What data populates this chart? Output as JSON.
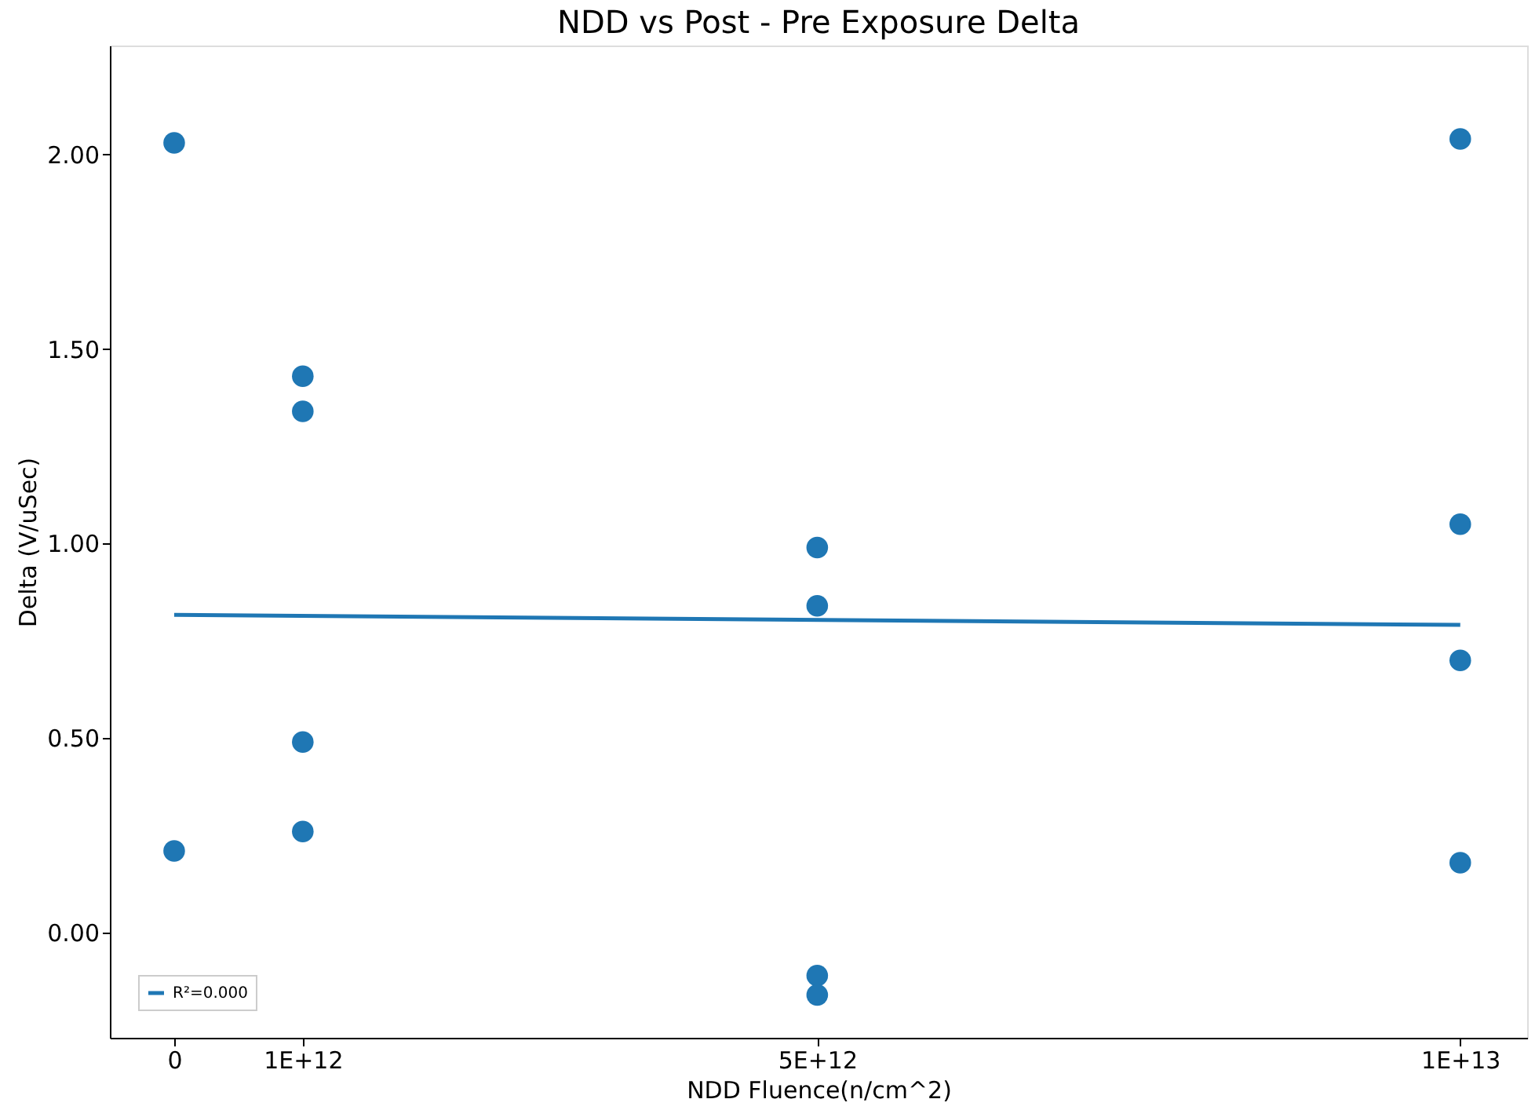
{
  "chart_data": {
    "type": "scatter",
    "title": "NDD vs Post - Pre Exposure Delta",
    "xlabel": "NDD Fluence(n/cm^2)",
    "ylabel": "Delta (V/uSec)",
    "series": [
      {
        "marker": "circle",
        "color": "#1f77b4",
        "x": [
          0,
          0,
          1000000000000.0,
          1000000000000.0,
          1000000000000.0,
          1000000000000.0,
          5000000000000.0,
          5000000000000.0,
          5000000000000.0,
          5000000000000.0,
          10000000000000.0,
          10000000000000.0,
          10000000000000.0,
          10000000000000.0
        ],
        "values": [
          2.03,
          0.21,
          1.43,
          1.34,
          0.49,
          0.26,
          0.99,
          0.84,
          -0.11,
          -0.16,
          2.04,
          1.05,
          0.7,
          0.18
        ]
      },
      {
        "type": "line",
        "name": "R²=0.000",
        "color": "#1f77b4",
        "x": [
          0,
          10000000000000.0
        ],
        "values": [
          0.817,
          0.791
        ]
      }
    ],
    "xlim": [
      -500000000000.0,
      10520000000000.0
    ],
    "ylim": [
      -0.27,
      2.28
    ],
    "xticks": [
      {
        "value": 0,
        "label": "0"
      },
      {
        "value": 1000000000000.0,
        "label": "1E+12"
      },
      {
        "value": 5000000000000.0,
        "label": "5E+12"
      },
      {
        "value": 10000000000000.0,
        "label": "1E+13"
      }
    ],
    "yticks": [
      {
        "value": 0,
        "label": "0.00"
      },
      {
        "value": 0.5,
        "label": "0.50"
      },
      {
        "value": 1,
        "label": "1.00"
      },
      {
        "value": 1.5,
        "label": "1.50"
      },
      {
        "value": 2,
        "label": "2.00"
      }
    ],
    "grid": false,
    "legend": "bottom left"
  }
}
